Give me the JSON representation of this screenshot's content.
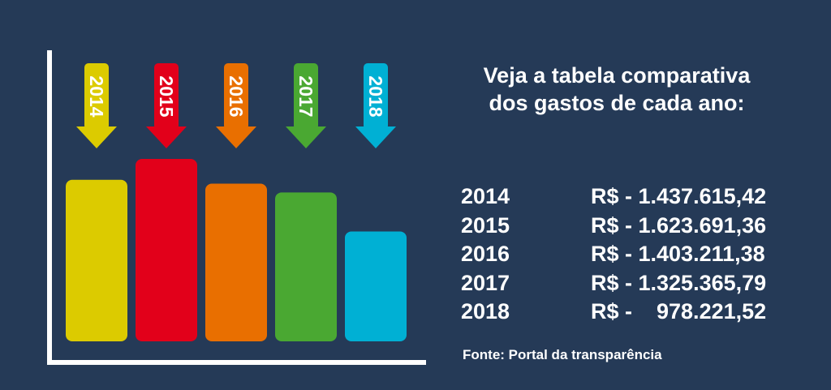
{
  "heading": {
    "line1": "Veja a tabela comparativa",
    "line2": "dos gastos de cada ano:"
  },
  "table": {
    "rows": [
      {
        "year": "2014",
        "value": "R$ - 1.437.615,42"
      },
      {
        "year": "2015",
        "value": "R$ - 1.623.691,36"
      },
      {
        "year": "2016",
        "value": "R$ - 1.403.211,38"
      },
      {
        "year": "2017",
        "value": "R$ - 1.325.365,79"
      },
      {
        "year": "2018",
        "value": "R$ -    978.221,52"
      }
    ]
  },
  "source": "Fonte: Portal da transparência",
  "chart_data": {
    "type": "bar",
    "categories": [
      "2014",
      "2015",
      "2016",
      "2017",
      "2018"
    ],
    "values": [
      1437615.42,
      1623691.36,
      1403211.38,
      1325365.79,
      978221.52
    ],
    "colors": [
      "#dccb00",
      "#e2001a",
      "#e96f00",
      "#4aa832",
      "#00b0d4"
    ],
    "axis_color": "#ffffff",
    "grid": false,
    "legend": "none"
  }
}
